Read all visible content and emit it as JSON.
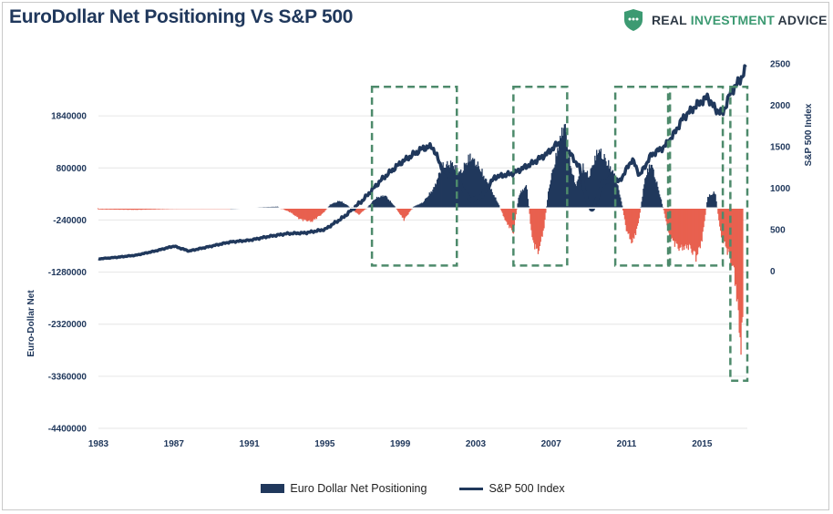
{
  "header": {
    "title": "EuroDollar Net Positioning Vs S&P 500",
    "brand_name_a": "REAL ",
    "brand_name_b": "INVESTMENT",
    "brand_name_c": " ADVICE",
    "brand_color": "#3c9a72"
  },
  "legend": {
    "bar_label": "Euro Dollar Net Positioning",
    "line_label": "S&P 500 Index"
  },
  "chart_data": {
    "type": "bar",
    "title": "EuroDollar Net Positioning Vs S&P 500",
    "x_range": [
      1983,
      2017.4
    ],
    "x_ticks": [
      1983,
      1987,
      1991,
      1995,
      1999,
      2003,
      2007,
      2011,
      2015
    ],
    "left_axis": {
      "label": "Euro-Dollar Net",
      "range": [
        -4400000,
        2880000
      ],
      "ticks": [
        1840000,
        800000,
        -240000,
        -1280000,
        -2320000,
        -3360000,
        -4400000
      ]
    },
    "right_axis": {
      "label": "S&P 500 Index",
      "range": [
        -1900,
        2500
      ],
      "ticks": [
        0,
        500,
        1000,
        1500,
        2000,
        2500
      ]
    },
    "colors": {
      "positive": "#20385c",
      "negative": "#e8604f",
      "line": "#20385c",
      "box": "#4d8a6b"
    },
    "series": [
      {
        "name": "Euro Dollar Net Positioning",
        "axis": "left",
        "points": [
          [
            1983,
            -30000
          ],
          [
            1985,
            -40000
          ],
          [
            1987,
            -20000
          ],
          [
            1989,
            -10000
          ],
          [
            1991,
            10000
          ],
          [
            1992.5,
            30000
          ],
          [
            1993.2,
            -100000
          ],
          [
            1993.7,
            -250000
          ],
          [
            1994.3,
            -300000
          ],
          [
            1994.9,
            -120000
          ],
          [
            1995.3,
            80000
          ],
          [
            1995.8,
            160000
          ],
          [
            1996.2,
            60000
          ],
          [
            1996.8,
            -150000
          ],
          [
            1997.3,
            30000
          ],
          [
            1997.7,
            220000
          ],
          [
            1998.2,
            280000
          ],
          [
            1998.7,
            40000
          ],
          [
            1999.2,
            -260000
          ],
          [
            1999.7,
            30000
          ],
          [
            2000.2,
            120000
          ],
          [
            2000.8,
            450000
          ],
          [
            2001.2,
            900000
          ],
          [
            2001.7,
            1000000
          ],
          [
            2002.2,
            780000
          ],
          [
            2002.7,
            1150000
          ],
          [
            2003.2,
            900000
          ],
          [
            2003.7,
            500000
          ],
          [
            2004.2,
            100000
          ],
          [
            2004.6,
            -300000
          ],
          [
            2005.0,
            -550000
          ],
          [
            2005.3,
            300000
          ],
          [
            2005.7,
            500000
          ],
          [
            2006.0,
            -700000
          ],
          [
            2006.3,
            -1000000
          ],
          [
            2006.6,
            -500000
          ],
          [
            2006.9,
            500000
          ],
          [
            2007.3,
            1200000
          ],
          [
            2007.7,
            1900000
          ],
          [
            2008.0,
            1000000
          ],
          [
            2008.3,
            500000
          ],
          [
            2008.7,
            900000
          ],
          [
            2009.0,
            700000
          ],
          [
            2009.5,
            1300000
          ],
          [
            2010.0,
            1000000
          ],
          [
            2010.4,
            700000
          ],
          [
            2010.7,
            200000
          ],
          [
            2011.0,
            -500000
          ],
          [
            2011.3,
            -780000
          ],
          [
            2011.6,
            -400000
          ],
          [
            2012.0,
            700000
          ],
          [
            2012.3,
            1000000
          ],
          [
            2012.7,
            400000
          ],
          [
            2013.0,
            -100000
          ],
          [
            2013.3,
            -650000
          ],
          [
            2013.8,
            -900000
          ],
          [
            2014.3,
            -850000
          ],
          [
            2014.7,
            -1100000
          ],
          [
            2015.0,
            -700000
          ],
          [
            2015.3,
            250000
          ],
          [
            2015.7,
            350000
          ],
          [
            2016.0,
            -600000
          ],
          [
            2016.4,
            -1000000
          ],
          [
            2016.7,
            -1400000
          ],
          [
            2016.9,
            -2200000
          ],
          [
            2017.05,
            -3100000
          ],
          [
            2017.2,
            -2300000
          ]
        ]
      },
      {
        "name": "S&P 500 Index",
        "axis": "right",
        "points": [
          [
            1983,
            145
          ],
          [
            1984,
            165
          ],
          [
            1985,
            190
          ],
          [
            1986,
            240
          ],
          [
            1987,
            300
          ],
          [
            1987.8,
            240
          ],
          [
            1989,
            300
          ],
          [
            1990,
            350
          ],
          [
            1991,
            370
          ],
          [
            1992,
            415
          ],
          [
            1993,
            450
          ],
          [
            1994,
            460
          ],
          [
            1995,
            500
          ],
          [
            1996,
            650
          ],
          [
            1997,
            850
          ],
          [
            1998,
            1100
          ],
          [
            1999,
            1300
          ],
          [
            2000.2,
            1480
          ],
          [
            2000.7,
            1500
          ],
          [
            2001.3,
            1200
          ],
          [
            2002.0,
            1100
          ],
          [
            2002.7,
            850
          ],
          [
            2003.3,
            900
          ],
          [
            2004,
            1130
          ],
          [
            2005,
            1180
          ],
          [
            2006,
            1300
          ],
          [
            2006.8,
            1420
          ],
          [
            2007.4,
            1550
          ],
          [
            2007.9,
            1450
          ],
          [
            2008.5,
            1250
          ],
          [
            2008.9,
            850
          ],
          [
            2009.2,
            720
          ],
          [
            2009.7,
            1050
          ],
          [
            2010.3,
            1150
          ],
          [
            2010.6,
            1070
          ],
          [
            2011.3,
            1350
          ],
          [
            2011.7,
            1150
          ],
          [
            2012.3,
            1400
          ],
          [
            2013,
            1500
          ],
          [
            2013.5,
            1650
          ],
          [
            2014,
            1850
          ],
          [
            2014.7,
            2000
          ],
          [
            2015.3,
            2100
          ],
          [
            2015.7,
            1950
          ],
          [
            2016.1,
            1900
          ],
          [
            2016.5,
            2150
          ],
          [
            2017,
            2300
          ],
          [
            2017.35,
            2450
          ]
        ]
      }
    ],
    "annotations": [
      {
        "type": "dashed-box",
        "x": [
          1997.5,
          2002.0
        ],
        "y": [
          -1150000,
          2420000
        ]
      },
      {
        "type": "dashed-box",
        "x": [
          2005.0,
          2007.85
        ],
        "y": [
          -1150000,
          2420000
        ]
      },
      {
        "type": "dashed-box",
        "x": [
          2010.4,
          2013.2
        ],
        "y": [
          -1150000,
          2420000
        ]
      },
      {
        "type": "dashed-box",
        "x": [
          2013.3,
          2016.1
        ],
        "y": [
          -1150000,
          2420000
        ]
      },
      {
        "type": "dashed-box",
        "x": [
          2016.5,
          2017.4
        ],
        "y": [
          -3450000,
          2420000
        ]
      }
    ]
  }
}
